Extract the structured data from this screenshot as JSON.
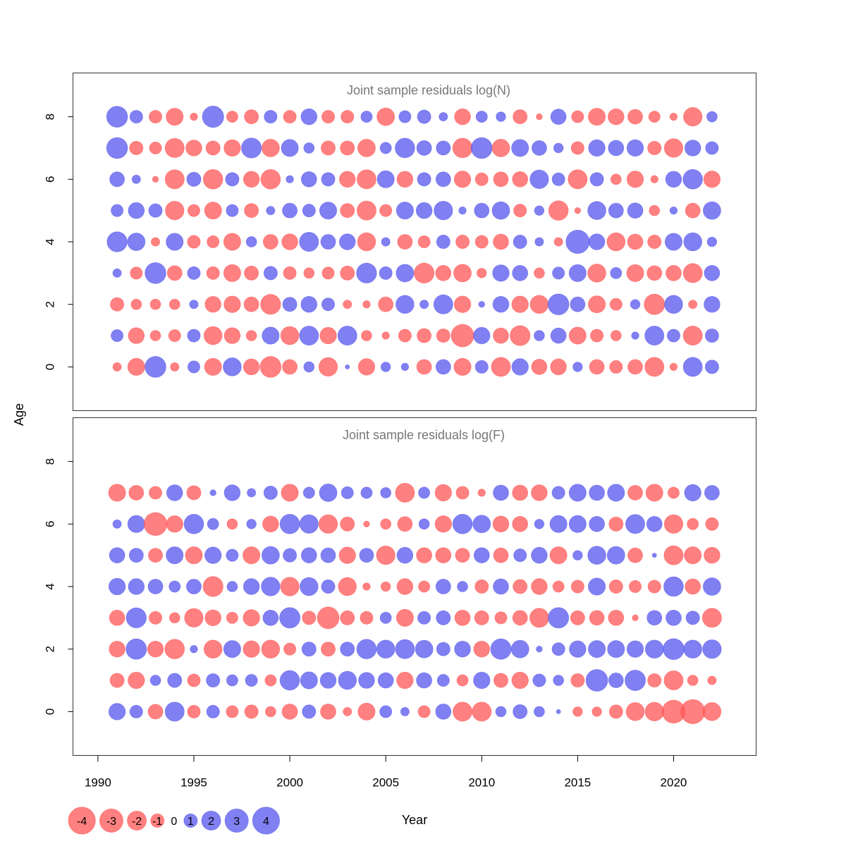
{
  "chart_data": {
    "type": "scatter",
    "subtype": "bubble",
    "xlabel": "Year",
    "ylabel": "Age",
    "xlim": [
      1988.7,
      2024.3
    ],
    "ylim": [
      -1.4,
      9.4
    ],
    "x_ticks": [
      1990,
      1995,
      2000,
      2005,
      2010,
      2015,
      2020
    ],
    "y_ticks": [
      0,
      2,
      4,
      6,
      8
    ],
    "years": [
      1991,
      1992,
      1993,
      1994,
      1995,
      1996,
      1997,
      1998,
      1999,
      2000,
      2001,
      2002,
      2003,
      2004,
      2005,
      2006,
      2007,
      2008,
      2009,
      2010,
      2011,
      2012,
      2013,
      2014,
      2015,
      2016,
      2017,
      2018,
      2019,
      2020,
      2021,
      2022
    ],
    "colors": {
      "positive": "#5555ee",
      "negative": "#ff5555",
      "alpha": 0.75
    },
    "legend": {
      "values": [
        -4,
        -3,
        -2,
        -1,
        0,
        1,
        2,
        3,
        4
      ],
      "labels": [
        "-4",
        "-3",
        "-2",
        "-1",
        "0",
        "1",
        "2",
        "3",
        "4"
      ]
    },
    "panels": [
      {
        "title": "Joint sample residuals log(N)",
        "residuals_by_age": {
          "0": [
            -0.4,
            -1.6,
            2.4,
            -0.4,
            0.8,
            -1.6,
            1.8,
            -1.4,
            -2.4,
            -1.2,
            0.6,
            -1.9,
            0.1,
            -1.5,
            0.5,
            0.3,
            -1.2,
            1.2,
            -1.6,
            0.9,
            -2.0,
            1.5,
            -1.3,
            -1.4,
            0.5,
            -1.2,
            -0.9,
            -1.2,
            -2.0,
            -0.3,
            2.0,
            1.0
          ],
          "1": [
            0.8,
            -1.4,
            -0.6,
            -0.8,
            0.9,
            -1.8,
            -1.4,
            -0.6,
            1.6,
            -1.8,
            2.0,
            -1.5,
            2.0,
            -0.6,
            -0.3,
            -0.9,
            -1.1,
            -1.0,
            -2.8,
            1.5,
            -1.3,
            -2.2,
            0.6,
            1.3,
            -1.6,
            -0.9,
            -0.6,
            0.3,
            2.0,
            0.9,
            -2.0,
            1.0
          ],
          "2": [
            -1.0,
            -0.6,
            -0.6,
            -0.6,
            0.4,
            -1.4,
            -1.5,
            -1.2,
            -2.2,
            1.1,
            1.4,
            0.9,
            -0.4,
            -0.3,
            -1.2,
            1.8,
            0.4,
            2.0,
            -1.5,
            0.2,
            1.4,
            -1.5,
            -1.8,
            2.4,
            1.2,
            -1.6,
            -0.8,
            0.5,
            -2.3,
            1.8,
            -0.4,
            1.4
          ],
          "3": [
            0.4,
            -0.8,
            2.4,
            -1.2,
            0.9,
            -0.9,
            -1.6,
            -1.1,
            1.0,
            -0.9,
            -0.6,
            -0.8,
            -1.1,
            2.2,
            0.9,
            1.7,
            -2.2,
            -1.3,
            -1.7,
            -0.5,
            1.5,
            1.3,
            -0.6,
            0.8,
            1.6,
            -1.8,
            0.7,
            -1.6,
            -1.2,
            -1.3,
            -2.0,
            1.3
          ],
          "4": [
            2.2,
            1.7,
            -0.4,
            1.6,
            -0.9,
            -0.8,
            -1.6,
            0.6,
            -1.2,
            -1.4,
            2.0,
            1.2,
            1.4,
            -1.8,
            0.4,
            -1.2,
            -0.8,
            1.0,
            -1.0,
            -0.9,
            -1.3,
            1.0,
            0.4,
            -0.4,
            3.0,
            1.4,
            -1.8,
            -1.3,
            -1.0,
            1.6,
            1.8,
            0.5
          ],
          "5": [
            0.8,
            1.4,
            1.0,
            -1.9,
            -0.8,
            -1.6,
            0.8,
            -1.1,
            0.4,
            1.2,
            0.9,
            1.6,
            -1.1,
            -2.0,
            -0.8,
            1.6,
            1.4,
            1.9,
            0.3,
            1.2,
            1.7,
            -0.9,
            0.5,
            -2.1,
            -0.2,
            1.8,
            1.2,
            1.3,
            -0.6,
            0.3,
            -1.2,
            1.7
          ],
          "6": [
            1.2,
            0.4,
            -0.2,
            -2.0,
            1.1,
            -2.1,
            1.0,
            -1.4,
            -2.1,
            0.3,
            1.3,
            1.0,
            -1.4,
            -2.0,
            1.6,
            -1.4,
            1.0,
            1.2,
            -1.5,
            -0.9,
            -1.2,
            -1.3,
            1.9,
            0.9,
            -2.0,
            1.0,
            -0.6,
            -1.5,
            -0.3,
            1.4,
            2.1,
            -1.5
          ],
          "7": [
            2.4,
            -1.0,
            -0.8,
            -2.0,
            -1.4,
            -1.1,
            -1.5,
            2.2,
            -1.7,
            1.6,
            0.6,
            -1.1,
            -1.1,
            -1.7,
            0.7,
            2.1,
            1.2,
            1.1,
            -2.1,
            2.4,
            -1.7,
            1.6,
            1.2,
            0.5,
            -0.9,
            1.5,
            1.3,
            1.5,
            -1.0,
            -1.9,
            1.4,
            0.9
          ],
          "8": [
            2.4,
            0.9,
            -0.9,
            -1.6,
            -0.3,
            2.5,
            -0.7,
            -1.1,
            0.9,
            -0.9,
            1.4,
            -0.9,
            -0.9,
            0.7,
            -1.7,
            0.8,
            1.0,
            0.4,
            -1.4,
            0.7,
            0.5,
            -1.1,
            -0.2,
            1.3,
            -0.8,
            -1.6,
            -1.4,
            -1.2,
            -0.7,
            -0.3,
            -1.9,
            0.6
          ]
        }
      },
      {
        "title": "Joint sample residuals log(F)",
        "residuals_by_age": {
          "0": [
            1.5,
            0.9,
            -1.2,
            2.0,
            -0.9,
            0.9,
            -0.8,
            -1.0,
            -0.6,
            -1.3,
            1.0,
            -1.3,
            -0.4,
            -1.6,
            0.8,
            0.4,
            -0.8,
            1.3,
            -2.0,
            -2.0,
            0.6,
            1.1,
            0.6,
            0.1,
            -0.5,
            -0.5,
            -1.0,
            -1.8,
            -1.9,
            -2.9,
            -3.2,
            -1.8
          ],
          "1": [
            -1.1,
            -1.5,
            0.6,
            1.1,
            -0.9,
            1.0,
            0.7,
            0.8,
            -0.7,
            2.1,
            1.6,
            1.4,
            1.8,
            1.4,
            1.3,
            -1.5,
            1.3,
            0.8,
            -0.7,
            1.5,
            -1.1,
            -1.5,
            0.9,
            0.6,
            -1.0,
            2.6,
            1.2,
            2.3,
            -1.0,
            -2.0,
            -0.6,
            -0.4
          ],
          "2": [
            -1.4,
            2.3,
            -1.4,
            -2.1,
            0.3,
            -1.8,
            1.6,
            -1.5,
            -1.8,
            -0.8,
            1.1,
            -1.1,
            1.1,
            2.1,
            1.8,
            2.0,
            1.7,
            1.0,
            1.4,
            -1.4,
            2.3,
            1.7,
            0.2,
            0.9,
            1.5,
            1.6,
            1.6,
            1.5,
            1.8,
            2.4,
            1.8,
            1.9
          ],
          "3": [
            -1.3,
            2.2,
            -0.9,
            -0.6,
            -1.9,
            -1.4,
            -0.7,
            -1.5,
            1.3,
            2.3,
            -1.0,
            -2.6,
            -1.1,
            -0.9,
            0.7,
            -1.6,
            0.9,
            1.1,
            -1.3,
            -1.1,
            -0.8,
            -1.2,
            -2.0,
            2.3,
            -1.1,
            -1.2,
            -1.3,
            -0.2,
            1.2,
            1.3,
            1.0,
            -2.0
          ],
          "4": [
            1.5,
            1.4,
            1.2,
            0.7,
            1.2,
            -2.2,
            0.6,
            1.4,
            1.9,
            -1.9,
            1.8,
            1.0,
            -1.8,
            -0.3,
            -0.5,
            -1.4,
            -0.7,
            1.2,
            0.6,
            -1.0,
            1.3,
            -1.1,
            -1.4,
            -0.7,
            -0.9,
            1.6,
            -1.0,
            -0.8,
            -0.9,
            2.1,
            -1.3,
            1.7
          ],
          "5": [
            1.3,
            1.1,
            -1.1,
            1.6,
            -1.6,
            1.5,
            0.8,
            -1.6,
            1.7,
            1.0,
            1.3,
            1.2,
            -1.5,
            1.1,
            -1.9,
            1.4,
            -1.3,
            -1.3,
            -1.1,
            1.3,
            -1.2,
            0.9,
            1.4,
            -1.6,
            0.5,
            1.8,
            1.7,
            -1.2,
            0.1,
            -2.0,
            -1.6,
            -1.4
          ],
          "6": [
            0.4,
            1.6,
            -2.9,
            -1.5,
            2.1,
            0.7,
            -0.6,
            0.5,
            -1.4,
            2.1,
            1.9,
            -1.9,
            -1.1,
            -0.2,
            -0.6,
            -1.2,
            0.6,
            -1.5,
            2.1,
            1.7,
            -1.4,
            -1.3,
            0.5,
            1.6,
            1.6,
            1.3,
            -1.1,
            2.0,
            1.3,
            -1.9,
            -0.7,
            -0.9
          ],
          "7": [
            -1.6,
            -1.2,
            -0.9,
            1.4,
            -1.1,
            0.2,
            1.4,
            0.4,
            1.0,
            -1.6,
            0.7,
            1.7,
            0.8,
            0.7,
            0.6,
            -2.0,
            0.7,
            -1.5,
            -0.9,
            -0.3,
            1.3,
            -1.3,
            -1.4,
            0.9,
            1.6,
            1.3,
            1.6,
            -1.2,
            -1.6,
            -0.7,
            1.5,
            1.2
          ]
        }
      }
    ]
  }
}
